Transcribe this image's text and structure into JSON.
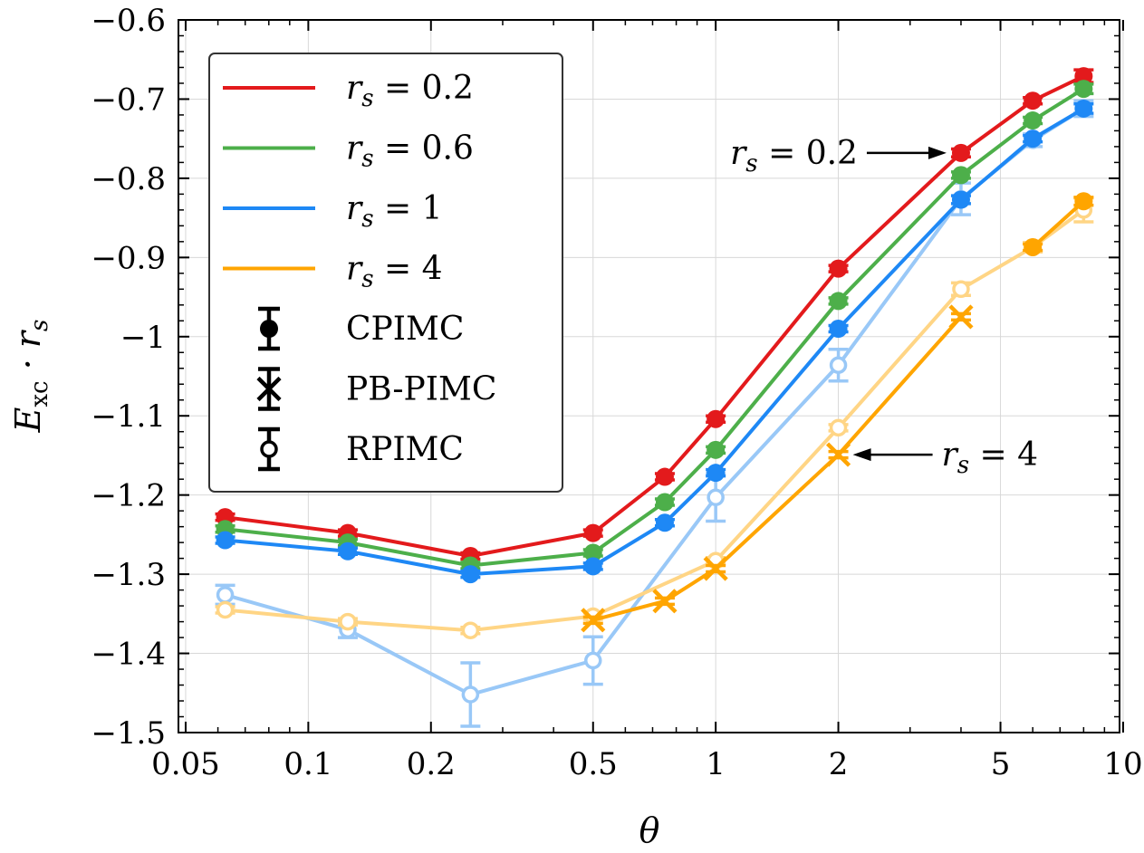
{
  "chart_data": {
    "type": "line",
    "xscale": "log",
    "xlim": [
      0.048,
      9.8
    ],
    "ylim": [
      -1.5,
      -0.6
    ],
    "grid": true,
    "xlabel": "θ",
    "ylabel": {
      "main": "E",
      "sub": "xc",
      "tail": " · r",
      "tail_sub": "s"
    },
    "xticks": [
      {
        "value": 0.05,
        "label": "0.05"
      },
      {
        "value": 0.1,
        "label": "0.1"
      },
      {
        "value": 0.2,
        "label": "0.2"
      },
      {
        "value": 0.5,
        "label": "0.5"
      },
      {
        "value": 1,
        "label": "1"
      },
      {
        "value": 2,
        "label": "2"
      },
      {
        "value": 5,
        "label": "5"
      },
      {
        "value": 10,
        "label": "10"
      }
    ],
    "yticks": [
      {
        "value": -0.6,
        "label": "−0.6"
      },
      {
        "value": -0.7,
        "label": "−0.7"
      },
      {
        "value": -0.8,
        "label": "−0.8"
      },
      {
        "value": -0.9,
        "label": "−0.9"
      },
      {
        "value": -1.0,
        "label": "−1"
      },
      {
        "value": -1.1,
        "label": "−1.1"
      },
      {
        "value": -1.2,
        "label": "−1.2"
      },
      {
        "value": -1.3,
        "label": "−1.3"
      },
      {
        "value": -1.4,
        "label": "−1.4"
      },
      {
        "value": -1.5,
        "label": "−1.5"
      }
    ],
    "series": [
      {
        "name": "rs=0.2 CPIMC",
        "rs": "0.2",
        "method": "CPIMC",
        "color": "#e31a1c",
        "marker": "filled",
        "points": [
          {
            "x": 0.0625,
            "y": -1.228,
            "err": 0.004
          },
          {
            "x": 0.125,
            "y": -1.248,
            "err": 0.004
          },
          {
            "x": 0.25,
            "y": -1.277,
            "err": 0.004
          },
          {
            "x": 0.5,
            "y": -1.248,
            "err": 0.004
          },
          {
            "x": 0.75,
            "y": -1.177,
            "err": 0.004
          },
          {
            "x": 1,
            "y": -1.104,
            "err": 0.004
          },
          {
            "x": 2,
            "y": -0.914,
            "err": 0.004
          },
          {
            "x": 4,
            "y": -0.768,
            "err": 0.005
          },
          {
            "x": 6,
            "y": -0.702,
            "err": 0.004
          },
          {
            "x": 8,
            "y": -0.671,
            "err": 0.008
          }
        ]
      },
      {
        "name": "rs=0.6 CPIMC",
        "rs": "0.6",
        "method": "CPIMC",
        "color": "#4daf4a",
        "marker": "filled",
        "points": [
          {
            "x": 0.0625,
            "y": -1.243,
            "err": 0.004
          },
          {
            "x": 0.125,
            "y": -1.26,
            "err": 0.004
          },
          {
            "x": 0.25,
            "y": -1.289,
            "err": 0.004
          },
          {
            "x": 0.5,
            "y": -1.273,
            "err": 0.004
          },
          {
            "x": 0.75,
            "y": -1.209,
            "err": 0.004
          },
          {
            "x": 1,
            "y": -1.143,
            "err": 0.004
          },
          {
            "x": 2,
            "y": -0.955,
            "err": 0.004
          },
          {
            "x": 4,
            "y": -0.796,
            "err": 0.004
          },
          {
            "x": 6,
            "y": -0.727,
            "err": 0.004
          },
          {
            "x": 8,
            "y": -0.687,
            "err": 0.006
          }
        ]
      },
      {
        "name": "rs=1 CPIMC",
        "rs": "1",
        "method": "CPIMC",
        "color": "#1e88f5",
        "marker": "filled",
        "points": [
          {
            "x": 0.0625,
            "y": -1.257,
            "err": 0.004
          },
          {
            "x": 0.125,
            "y": -1.271,
            "err": 0.004
          },
          {
            "x": 0.25,
            "y": -1.3,
            "err": 0.004
          },
          {
            "x": 0.5,
            "y": -1.29,
            "err": 0.004
          },
          {
            "x": 0.75,
            "y": -1.235,
            "err": 0.004
          },
          {
            "x": 1,
            "y": -1.172,
            "err": 0.004
          },
          {
            "x": 2,
            "y": -0.99,
            "err": 0.004
          },
          {
            "x": 4,
            "y": -0.827,
            "err": 0.005
          },
          {
            "x": 6,
            "y": -0.75,
            "err": 0.004
          },
          {
            "x": 8,
            "y": -0.712,
            "err": 0.006
          }
        ]
      },
      {
        "name": "rs=4 CPIMC",
        "rs": "4",
        "method": "CPIMC",
        "color": "#ffa500",
        "marker": "filled",
        "points": [
          {
            "x": 6,
            "y": -0.887,
            "err": 0.004
          },
          {
            "x": 8,
            "y": -0.829,
            "err": 0.005
          }
        ]
      },
      {
        "name": "rs=4 PB-PIMC",
        "rs": "4",
        "method": "PB-PIMC",
        "color": "#ffa500",
        "marker": "x",
        "points": [
          {
            "x": 0.5,
            "y": -1.358,
            "err": 0.004
          },
          {
            "x": 0.75,
            "y": -1.334,
            "err": 0.004
          },
          {
            "x": 1,
            "y": -1.293,
            "err": 0.004
          },
          {
            "x": 2,
            "y": -1.149,
            "err": 0.004
          },
          {
            "x": 4,
            "y": -0.975,
            "err": 0.004
          }
        ]
      },
      {
        "name": "rs=1 RPIMC",
        "rs": "1",
        "method": "RPIMC",
        "color": "#99c8f7",
        "marker": "open",
        "points": [
          {
            "x": 0.0625,
            "y": -1.326,
            "err": 0.012
          },
          {
            "x": 0.125,
            "y": -1.37,
            "err": 0.01
          },
          {
            "x": 0.25,
            "y": -1.452,
            "err": 0.04
          },
          {
            "x": 0.5,
            "y": -1.409,
            "err": 0.03
          },
          {
            "x": 1,
            "y": -1.203,
            "err": 0.03
          },
          {
            "x": 2,
            "y": -1.036,
            "err": 0.02
          },
          {
            "x": 4,
            "y": -0.826,
            "err": 0.02
          },
          {
            "x": 6,
            "y": -0.752,
            "err": 0.008
          },
          {
            "x": 8,
            "y": -0.712,
            "err": 0.01
          }
        ]
      },
      {
        "name": "rs=4 RPIMC",
        "rs": "4",
        "method": "RPIMC",
        "color": "#ffd585",
        "marker": "open",
        "points": [
          {
            "x": 0.0625,
            "y": -1.345,
            "err": 0.004
          },
          {
            "x": 0.125,
            "y": -1.36,
            "err": 0.004
          },
          {
            "x": 0.25,
            "y": -1.371,
            "err": 0.004
          },
          {
            "x": 0.5,
            "y": -1.353,
            "err": 0.004
          },
          {
            "x": 1,
            "y": -1.283,
            "err": 0.004
          },
          {
            "x": 2,
            "y": -1.115,
            "err": 0.004
          },
          {
            "x": 4,
            "y": -0.94,
            "err": 0.008
          },
          {
            "x": 6,
            "y": -0.887,
            "err": 0.006
          },
          {
            "x": 8,
            "y": -0.84,
            "err": 0.015
          }
        ]
      }
    ],
    "legend": {
      "placement": "top-left",
      "lines": [
        {
          "prefix": "r",
          "sub": "s",
          "text": " = 0.2",
          "color": "#e31a1c"
        },
        {
          "prefix": "r",
          "sub": "s",
          "text": " = 0.6",
          "color": "#4daf4a"
        },
        {
          "prefix": "r",
          "sub": "s",
          "text": " = 1",
          "color": "#1e88f5"
        },
        {
          "prefix": "r",
          "sub": "s",
          "text": " = 4",
          "color": "#ffa500"
        }
      ],
      "markers": [
        {
          "marker": "filled",
          "label": "CPIMC"
        },
        {
          "marker": "x",
          "label": "PB-PIMC"
        },
        {
          "marker": "open",
          "label": "RPIMC"
        }
      ]
    },
    "annotations": [
      {
        "prefix": "r",
        "sub": "s",
        "text": " = 0.2",
        "target_x": 4,
        "target_y": -0.768,
        "side": "left"
      },
      {
        "prefix": "r",
        "sub": "s",
        "text": " = 4",
        "target_x": 2,
        "target_y": -1.149,
        "side": "right"
      }
    ]
  }
}
